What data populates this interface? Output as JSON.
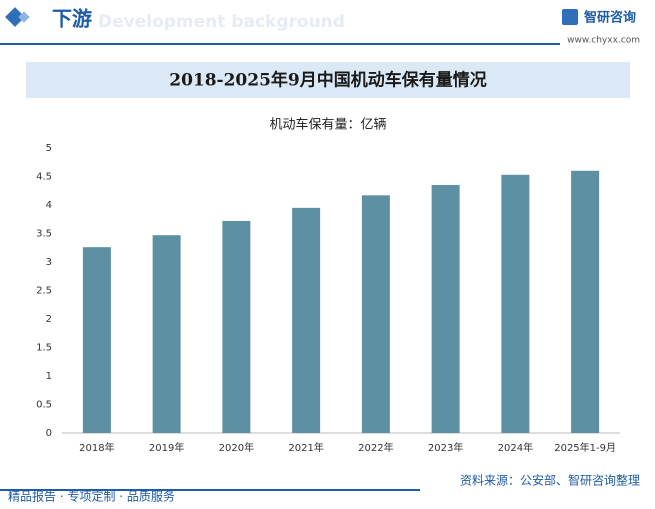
{
  "header": {
    "title": "下游",
    "watermark": "Development background",
    "logo": "智研咨询",
    "url": "www.chyxx.com"
  },
  "chart_data": {
    "type": "bar",
    "title": "2018-2025年9月中国机动车保有量情况",
    "subtitle": "机动车保有量：亿辆",
    "categories": [
      "2018年",
      "2019年",
      "2020年",
      "2021年",
      "2022年",
      "2023年",
      "2024年",
      "2025年1-9月"
    ],
    "values": [
      3.26,
      3.47,
      3.72,
      3.95,
      4.17,
      4.35,
      4.53,
      4.6
    ],
    "color": "#5e90a3",
    "ylim": [
      0,
      5
    ],
    "yticks": [
      0,
      0.5,
      1,
      1.5,
      2,
      2.5,
      3,
      3.5,
      4,
      4.5,
      5
    ]
  },
  "source": "资料来源：公安部、智研咨询整理",
  "footer": "精品报告 · 专项定制 · 品质服务"
}
